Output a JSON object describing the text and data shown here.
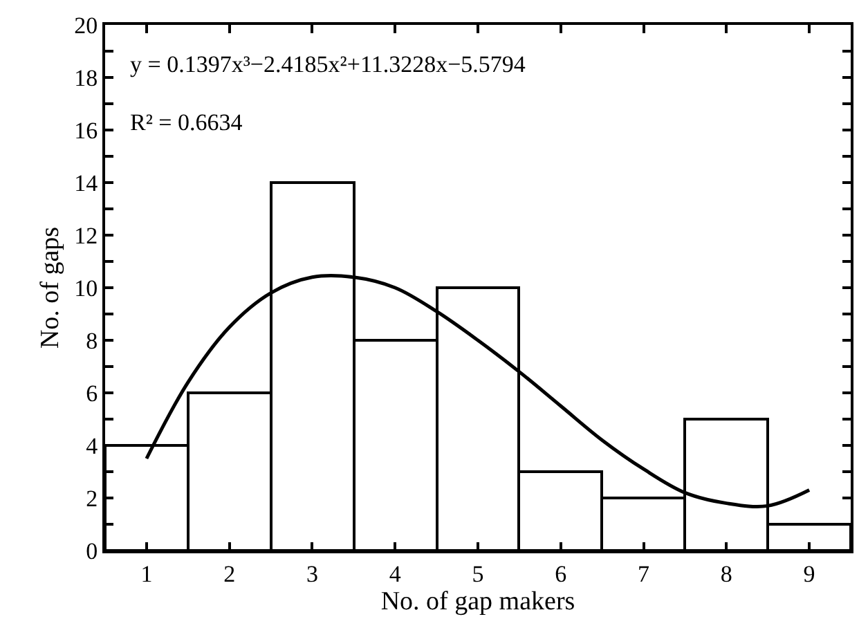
{
  "chart_data": {
    "type": "histogram",
    "xlabel": "No. of gap makers",
    "ylabel": "No. of gaps",
    "bins": [
      0.5,
      1.5,
      2.5,
      3.5,
      4.5,
      5.5,
      6.5,
      7.5,
      8.5,
      9.5
    ],
    "values": [
      4,
      6,
      14,
      8,
      10,
      3,
      2,
      5,
      1
    ],
    "color": "#ffffff",
    "series": [
      {
        "type": "line",
        "color": "#000000",
        "x": [
          1,
          1.5,
          2,
          2.5,
          3,
          3.5,
          4,
          4.5,
          5,
          5.5,
          6,
          6.5,
          7,
          7.5,
          8,
          8.5,
          9
        ],
        "values": [
          3.5,
          6.4,
          8.5,
          9.8,
          10.4,
          10.4,
          10.0,
          9.1,
          8.0,
          6.8,
          5.5,
          4.2,
          3.1,
          2.2,
          1.8,
          1.7,
          2.3
        ]
      }
    ],
    "xlim": [
      0.5,
      9.5
    ],
    "xticks": [
      1,
      2,
      3,
      4,
      5,
      6,
      7,
      8,
      9
    ],
    "ylim": [
      0,
      20
    ],
    "yticks": [
      0,
      {
        "value": 1,
        "label": null
      },
      2,
      {
        "value": 3,
        "label": null
      },
      4,
      {
        "value": 5,
        "label": null
      },
      6,
      {
        "value": 7,
        "label": null
      },
      8,
      {
        "value": 9,
        "label": null
      },
      10,
      {
        "value": 11,
        "label": null
      },
      12,
      {
        "value": 13,
        "label": null
      },
      14,
      {
        "value": 15,
        "label": null
      },
      16,
      {
        "value": 17,
        "label": null
      },
      18,
      {
        "value": 19,
        "label": null
      },
      20
    ],
    "annotations": [
      "y = 0.1397x³−2.4185x²+11.3228x−5.5794",
      "R² = 0.6634"
    ],
    "marker": "none"
  }
}
